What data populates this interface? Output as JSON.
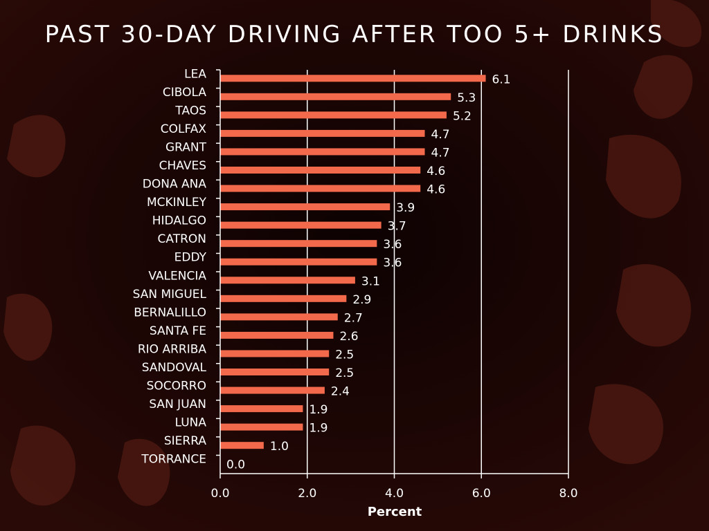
{
  "slide": {
    "title": "PAST 30-DAY DRIVING AFTER TOO 5+ DRINKS"
  },
  "colors": {
    "background": "#1a0606",
    "bar": "#f26a4b",
    "text": "#ffffff",
    "leaf": "#4a1710"
  },
  "chart_data": {
    "type": "bar",
    "orientation": "horizontal",
    "title": "",
    "xlabel": "Percent",
    "ylabel": "",
    "xlim": [
      0,
      8
    ],
    "xticks": [
      "0.0",
      "2.0",
      "4.0",
      "6.0",
      "8.0"
    ],
    "grid": true,
    "categories": [
      "LEA",
      "CIBOLA",
      "TAOS",
      "COLFAX",
      "GRANT",
      "CHAVES",
      "DONA ANA",
      "MCKINLEY",
      "HIDALGO",
      "CATRON",
      "EDDY",
      "VALENCIA",
      "SAN MIGUEL",
      "BERNALILLO",
      "SANTA FE",
      "RIO ARRIBA",
      "SANDOVAL",
      "SOCORRO",
      "SAN JUAN",
      "LUNA",
      "SIERRA",
      "TORRANCE"
    ],
    "values": [
      6.1,
      5.3,
      5.2,
      4.7,
      4.7,
      4.6,
      4.6,
      3.9,
      3.7,
      3.6,
      3.6,
      3.1,
      2.9,
      2.7,
      2.6,
      2.5,
      2.5,
      2.4,
      1.9,
      1.9,
      1.0,
      0.0
    ],
    "value_labels": [
      "6.1",
      "5.3",
      "5.2",
      "4.7",
      "4.7",
      "4.6",
      "4.6",
      "3.9",
      "3.7",
      "3.6",
      "3.6",
      "3.1",
      "2.9",
      "2.7",
      "2.6",
      "2.5",
      "2.5",
      "2.4",
      "1.9",
      "1.9",
      "1.0",
      "0.0"
    ]
  }
}
